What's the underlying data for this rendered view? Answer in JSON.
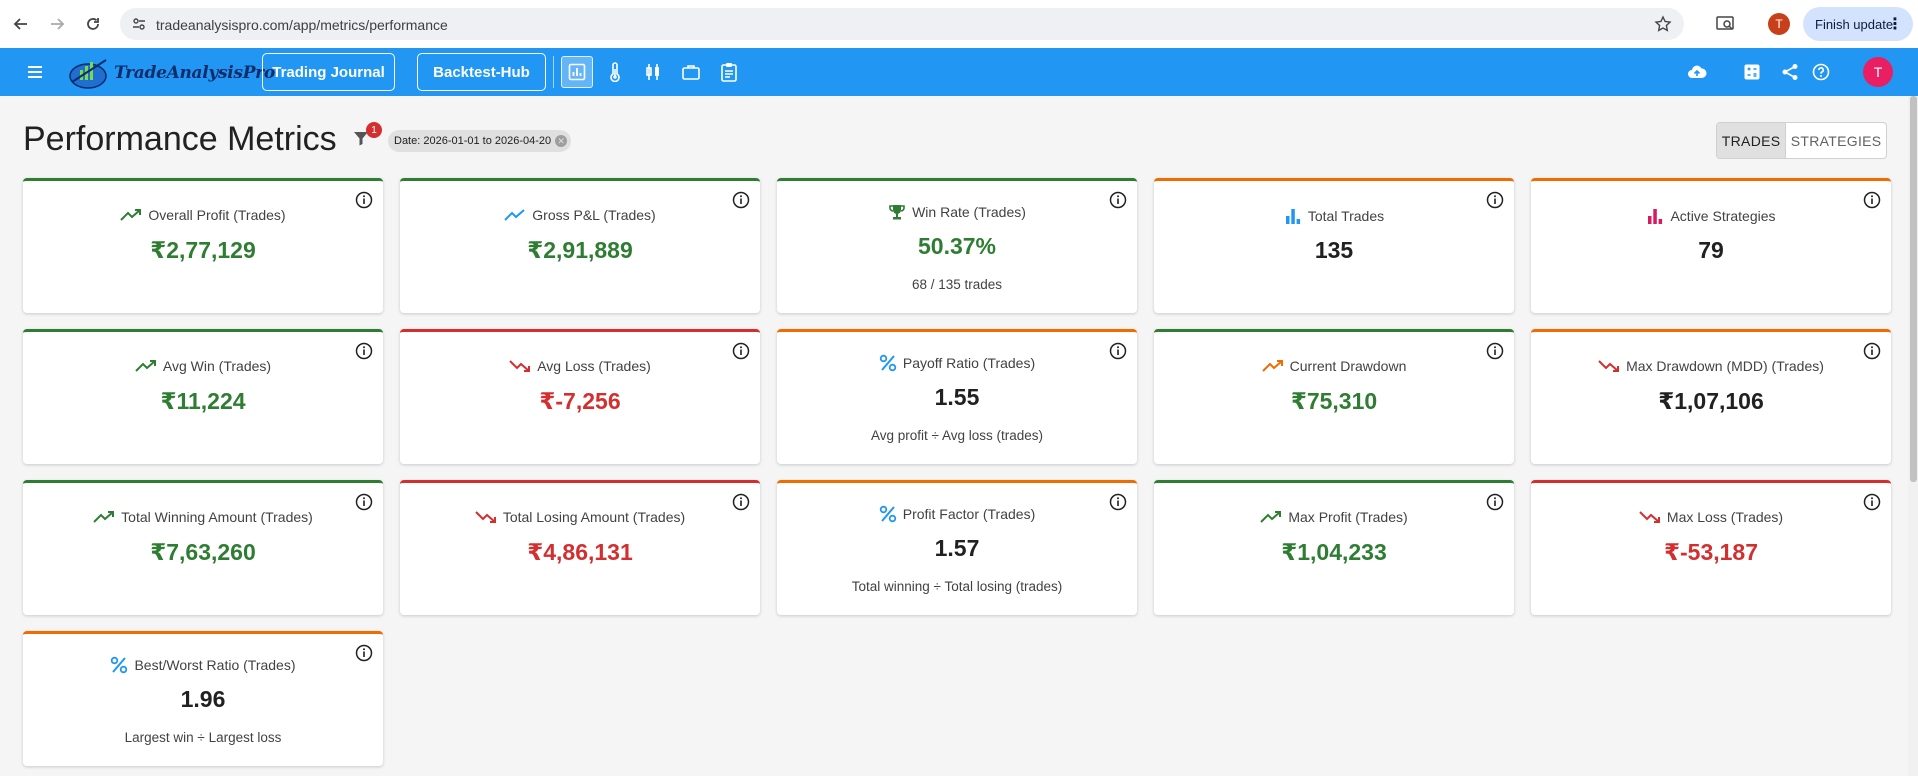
{
  "browser": {
    "url": "tradeanalysispro.com/app/metrics/performance",
    "profile_initial": "T",
    "update_label": "Finish update"
  },
  "header": {
    "logo_text": "TradeAnalysisPro",
    "nav_buttons": [
      "Trading Journal",
      "Backtest-Hub"
    ],
    "avatar_initial": "T"
  },
  "page": {
    "title": "Performance Metrics",
    "filter_count": "1",
    "date_chip": "Date: 2026-01-01 to 2026-04-20",
    "toggle": {
      "selected": "TRADES",
      "other": "STRATEGIES"
    }
  },
  "colors": {
    "header_bg": "#2196f3",
    "green": "#2e7d32",
    "red": "#d32f2f",
    "orange": "#ef6c00"
  },
  "cards": [
    {
      "title": "Overall Profit (Trades)",
      "value": "₹2,77,129",
      "icon": "trend-up-icon",
      "accent": "green",
      "tone": "green"
    },
    {
      "title": "Gross P&L (Trades)",
      "value": "₹2,91,889",
      "icon": "trend-up-blue-icon",
      "accent": "green",
      "tone": "green"
    },
    {
      "title": "Win Rate (Trades)",
      "value": "50.37%",
      "sub": "68 / 135 trades",
      "icon": "trophy-icon",
      "accent": "green",
      "tone": "green"
    },
    {
      "title": "Total Trades",
      "value": "135",
      "icon": "bar-chart-icon",
      "accent": "orange",
      "tone": "dark"
    },
    {
      "title": "Active Strategies",
      "value": "79",
      "icon": "bar-chart-pink-icon",
      "accent": "orange",
      "tone": "dark"
    },
    {
      "title": "Avg Win (Trades)",
      "value": "₹11,224",
      "icon": "trend-up-icon",
      "accent": "green",
      "tone": "green"
    },
    {
      "title": "Avg Loss (Trades)",
      "value": "₹-7,256",
      "icon": "trend-down-icon",
      "accent": "red",
      "tone": "red"
    },
    {
      "title": "Payoff Ratio (Trades)",
      "value": "1.55",
      "sub": "Avg profit ÷ Avg loss (trades)",
      "icon": "percent-icon",
      "accent": "orange",
      "tone": "dark"
    },
    {
      "title": "Current Drawdown",
      "value": "₹75,310",
      "icon": "trend-up-orange-icon",
      "accent": "green",
      "tone": "green"
    },
    {
      "title": "Max Drawdown (MDD) (Trades)",
      "value": "₹1,07,106",
      "icon": "trend-down-icon",
      "accent": "orange",
      "tone": "dark"
    },
    {
      "title": "Total Winning Amount (Trades)",
      "value": "₹7,63,260",
      "icon": "trend-up-icon",
      "accent": "green",
      "tone": "green"
    },
    {
      "title": "Total Losing Amount (Trades)",
      "value": "₹4,86,131",
      "icon": "trend-down-icon",
      "accent": "red",
      "tone": "red"
    },
    {
      "title": "Profit Factor (Trades)",
      "value": "1.57",
      "sub": "Total winning ÷ Total losing (trades)",
      "icon": "percent-icon",
      "accent": "orange",
      "tone": "dark"
    },
    {
      "title": "Max Profit (Trades)",
      "value": "₹1,04,233",
      "icon": "trend-up-icon",
      "accent": "green",
      "tone": "green"
    },
    {
      "title": "Max Loss (Trades)",
      "value": "₹-53,187",
      "icon": "trend-down-icon",
      "accent": "red",
      "tone": "red"
    },
    {
      "title": "Best/Worst Ratio (Trades)",
      "value": "1.96",
      "sub": "Largest win ÷ Largest loss",
      "icon": "percent-icon",
      "accent": "orange",
      "tone": "dark"
    }
  ]
}
